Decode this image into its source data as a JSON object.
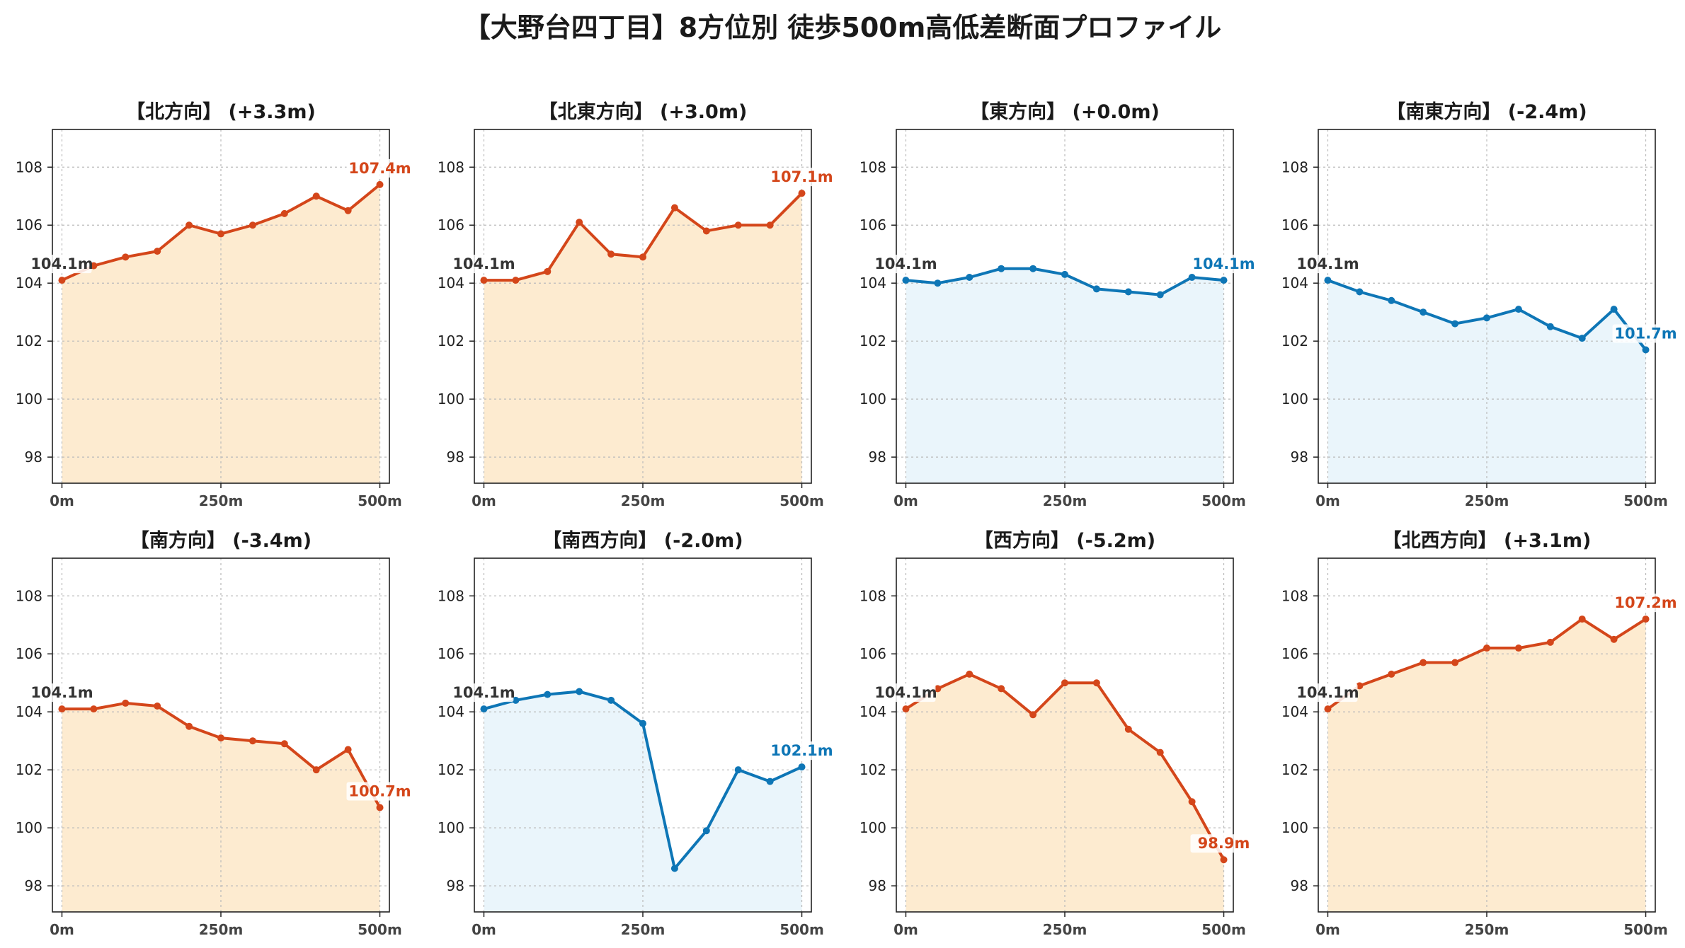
{
  "figure_title": "【大野台四丁目】8方位別 徒歩500m高低差断面プロファイル",
  "colors": {
    "up_line": "#d4461a",
    "up_fill": "#fdebd0",
    "down_line": "#0e76b6",
    "down_fill": "#eaf5fb",
    "start_label": "#333333",
    "grid": "#bbbbbb"
  },
  "chart_data": [
    {
      "type": "area",
      "title": "【北方向】 (+3.3m)",
      "trend": "up",
      "x": [
        0,
        50,
        100,
        150,
        200,
        250,
        300,
        350,
        400,
        450,
        500
      ],
      "values": [
        104.1,
        104.6,
        104.9,
        105.1,
        106.0,
        105.7,
        106.0,
        106.4,
        107.0,
        106.5,
        107.4
      ],
      "start_label": "104.1m",
      "end_label": "107.4m",
      "xticks": [
        "0m",
        "250m",
        "500m"
      ],
      "yticks": [
        "98",
        "100",
        "102",
        "104",
        "106",
        "108"
      ],
      "xlim": [
        -15,
        515
      ],
      "ylim": [
        97.1,
        109.3
      ],
      "grid": true
    },
    {
      "type": "area",
      "title": "【北東方向】 (+3.0m)",
      "trend": "up",
      "x": [
        0,
        50,
        100,
        150,
        200,
        250,
        300,
        350,
        400,
        450,
        500
      ],
      "values": [
        104.1,
        104.1,
        104.4,
        106.1,
        105.0,
        104.9,
        106.6,
        105.8,
        106.0,
        106.0,
        107.1
      ],
      "start_label": "104.1m",
      "end_label": "107.1m",
      "xticks": [
        "0m",
        "250m",
        "500m"
      ],
      "yticks": [
        "98",
        "100",
        "102",
        "104",
        "106",
        "108"
      ],
      "xlim": [
        -15,
        515
      ],
      "ylim": [
        97.1,
        109.3
      ],
      "grid": true
    },
    {
      "type": "area",
      "title": "【東方向】 (+0.0m)",
      "trend": "down",
      "x": [
        0,
        50,
        100,
        150,
        200,
        250,
        300,
        350,
        400,
        450,
        500
      ],
      "values": [
        104.1,
        104.0,
        104.2,
        104.5,
        104.5,
        104.3,
        103.8,
        103.7,
        103.6,
        104.2,
        104.1
      ],
      "start_label": "104.1m",
      "end_label": "104.1m",
      "xticks": [
        "0m",
        "250m",
        "500m"
      ],
      "yticks": [
        "98",
        "100",
        "102",
        "104",
        "106",
        "108"
      ],
      "xlim": [
        -15,
        515
      ],
      "ylim": [
        97.1,
        109.3
      ],
      "grid": true
    },
    {
      "type": "area",
      "title": "【南東方向】 (-2.4m)",
      "trend": "down",
      "x": [
        0,
        50,
        100,
        150,
        200,
        250,
        300,
        350,
        400,
        450,
        500
      ],
      "values": [
        104.1,
        103.7,
        103.4,
        103.0,
        102.6,
        102.8,
        103.1,
        102.5,
        102.1,
        103.1,
        101.7
      ],
      "start_label": "104.1m",
      "end_label": "101.7m",
      "xticks": [
        "0m",
        "250m",
        "500m"
      ],
      "yticks": [
        "98",
        "100",
        "102",
        "104",
        "106",
        "108"
      ],
      "xlim": [
        -15,
        515
      ],
      "ylim": [
        97.1,
        109.3
      ],
      "grid": true
    },
    {
      "type": "area",
      "title": "【南方向】 (-3.4m)",
      "trend": "up",
      "x": [
        0,
        50,
        100,
        150,
        200,
        250,
        300,
        350,
        400,
        450,
        500
      ],
      "values": [
        104.1,
        104.1,
        104.3,
        104.2,
        103.5,
        103.1,
        103.0,
        102.9,
        102.0,
        102.7,
        100.7
      ],
      "start_label": "104.1m",
      "end_label": "100.7m",
      "xticks": [
        "0m",
        "250m",
        "500m"
      ],
      "yticks": [
        "98",
        "100",
        "102",
        "104",
        "106",
        "108"
      ],
      "xlim": [
        -15,
        515
      ],
      "ylim": [
        97.1,
        109.3
      ],
      "grid": true
    },
    {
      "type": "area",
      "title": "【南西方向】 (-2.0m)",
      "trend": "down",
      "x": [
        0,
        50,
        100,
        150,
        200,
        250,
        300,
        350,
        400,
        450,
        500
      ],
      "values": [
        104.1,
        104.4,
        104.6,
        104.7,
        104.4,
        103.6,
        98.6,
        99.9,
        102.0,
        101.6,
        102.1
      ],
      "start_label": "104.1m",
      "end_label": "102.1m",
      "xticks": [
        "0m",
        "250m",
        "500m"
      ],
      "yticks": [
        "98",
        "100",
        "102",
        "104",
        "106",
        "108"
      ],
      "xlim": [
        -15,
        515
      ],
      "ylim": [
        97.1,
        109.3
      ],
      "grid": true
    },
    {
      "type": "area",
      "title": "【西方向】 (-5.2m)",
      "trend": "up",
      "x": [
        0,
        50,
        100,
        150,
        200,
        250,
        300,
        350,
        400,
        450,
        500
      ],
      "values": [
        104.1,
        104.8,
        105.3,
        104.8,
        103.9,
        105.0,
        105.0,
        103.4,
        102.6,
        100.9,
        98.9
      ],
      "start_label": "104.1m",
      "end_label": "98.9m",
      "xticks": [
        "0m",
        "250m",
        "500m"
      ],
      "yticks": [
        "98",
        "100",
        "102",
        "104",
        "106",
        "108"
      ],
      "xlim": [
        -15,
        515
      ],
      "ylim": [
        97.1,
        109.3
      ],
      "grid": true
    },
    {
      "type": "area",
      "title": "【北西方向】 (+3.1m)",
      "trend": "up",
      "x": [
        0,
        50,
        100,
        150,
        200,
        250,
        300,
        350,
        400,
        450,
        500
      ],
      "values": [
        104.1,
        104.9,
        105.3,
        105.7,
        105.7,
        106.2,
        106.2,
        106.4,
        107.2,
        106.5,
        107.2
      ],
      "start_label": "104.1m",
      "end_label": "107.2m",
      "xticks": [
        "0m",
        "250m",
        "500m"
      ],
      "yticks": [
        "98",
        "100",
        "102",
        "104",
        "106",
        "108"
      ],
      "xlim": [
        -15,
        515
      ],
      "ylim": [
        97.1,
        109.3
      ],
      "grid": true
    }
  ]
}
